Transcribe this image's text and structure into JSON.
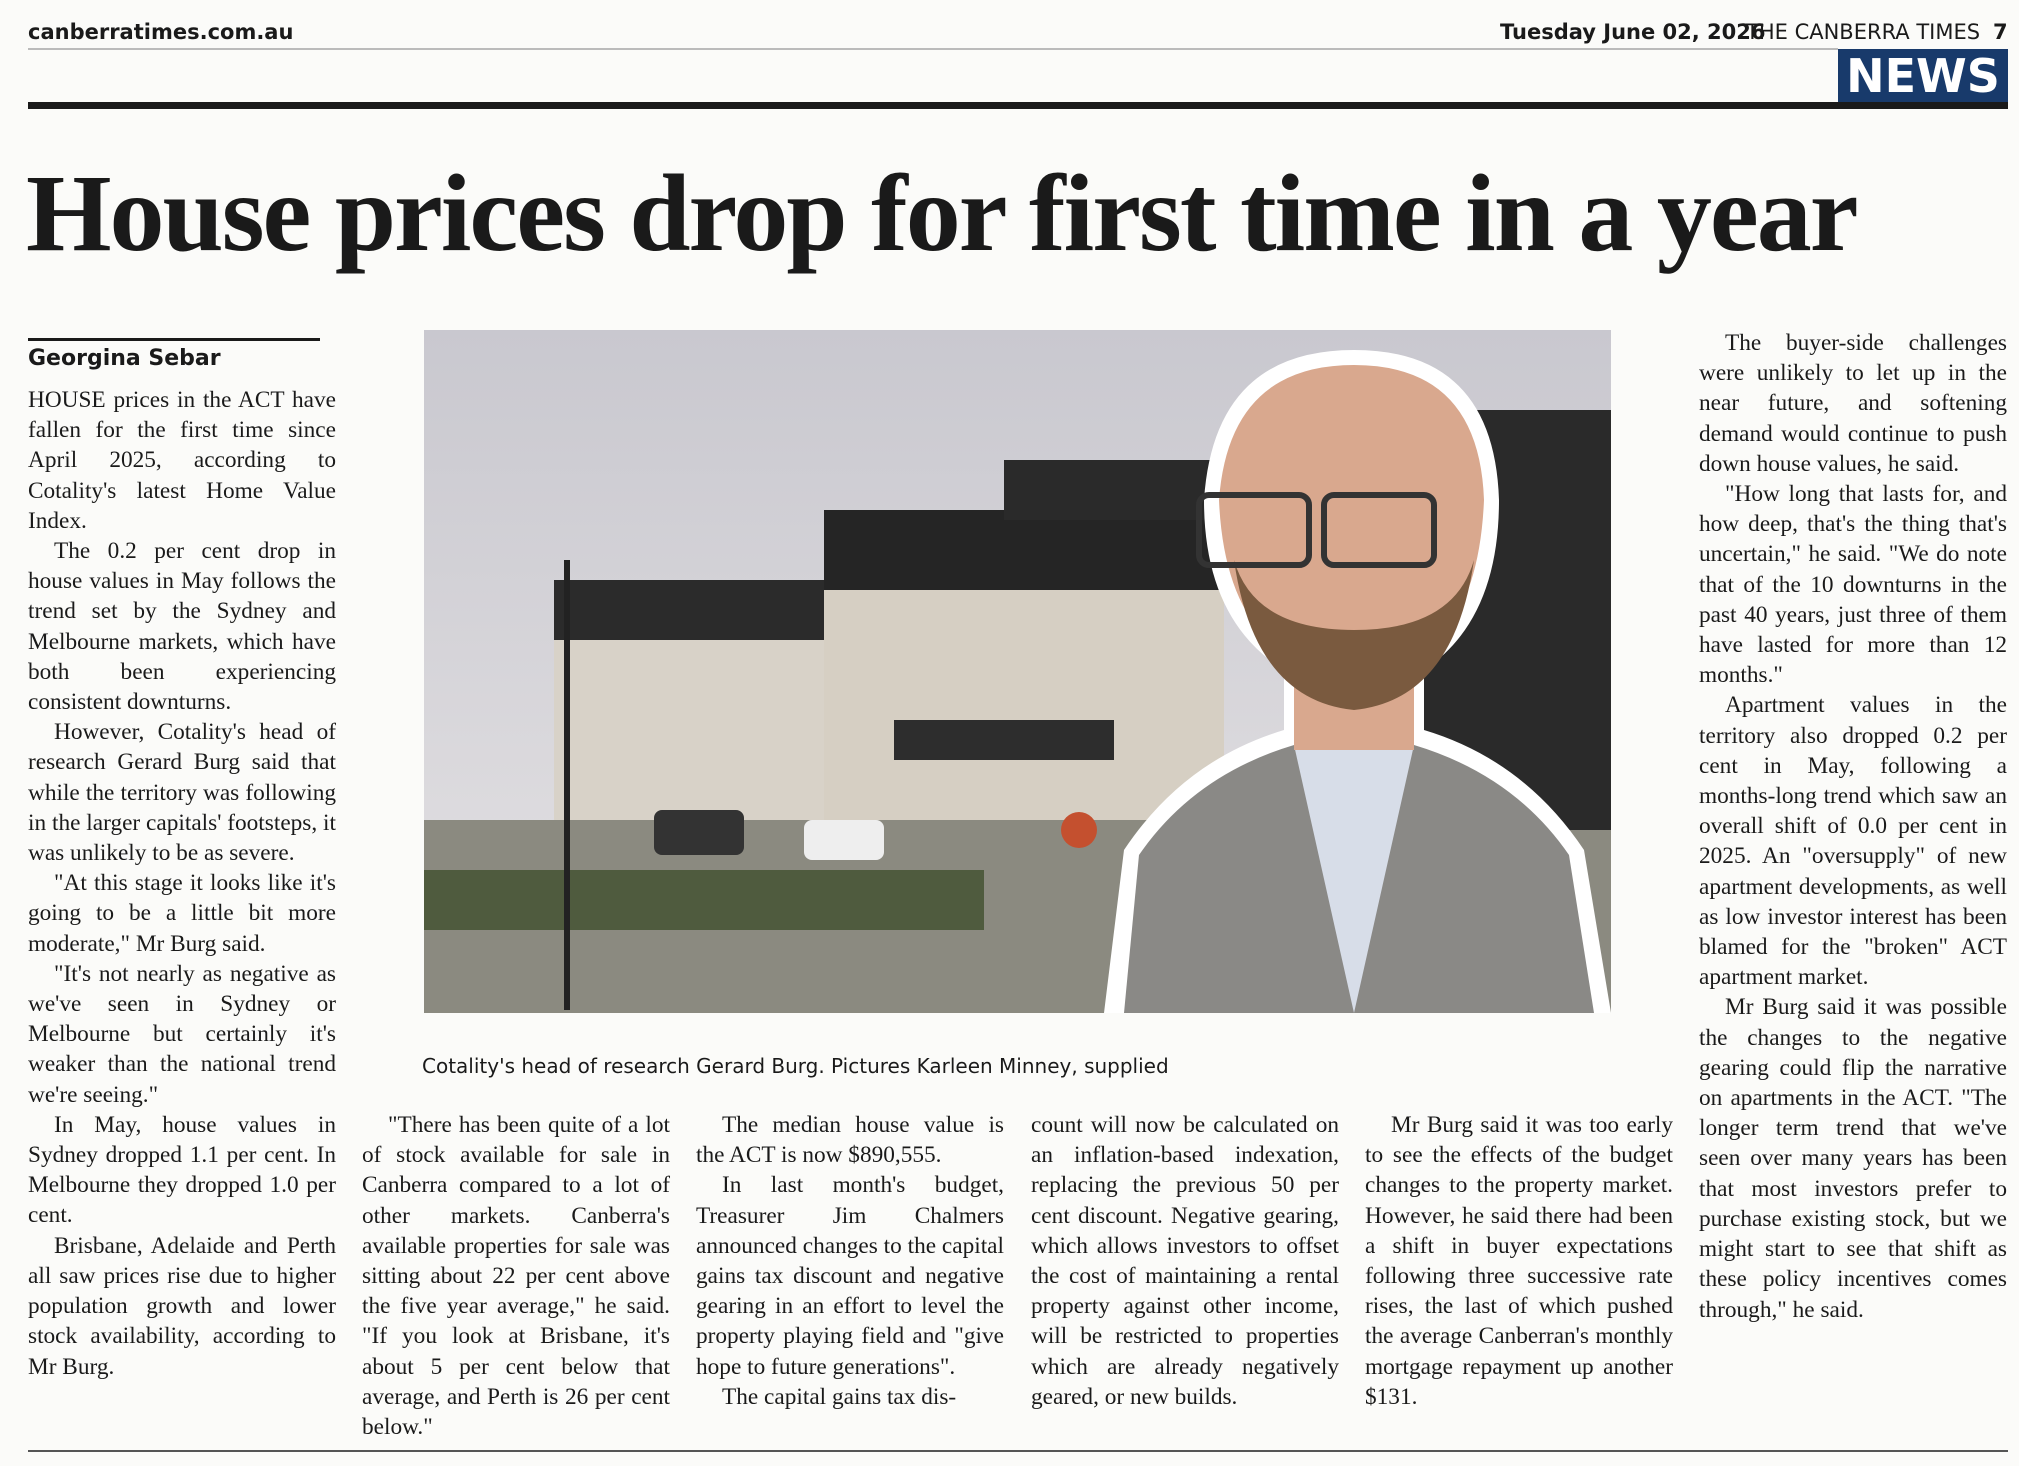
{
  "header": {
    "site": "canberratimes.com.au",
    "date": "Tuesday June 02, 2026",
    "paper": "THE CANBERRA TIMES",
    "page": "7",
    "section": "NEWS"
  },
  "headline": "House prices drop for first time in a year",
  "byline": "Georgina Sebar",
  "caption": "Cotality's head of research Gerard Burg. Pictures Karleen Minney, supplied",
  "columns": [
    [
      "HOUSE prices in the ACT have fallen for the first time since April 2025, according to Cotality's latest Home Value Index.",
      "The 0.2 per cent drop in house values in May follows the trend set by the Sydney and Melbourne markets, which have both been experiencing consistent downturns.",
      "However, Cotality's head of research Gerard Burg said that while the territory was following in the larger capitals' footsteps, it was unlikely to be as severe.",
      "\"At this stage it looks like it's going to be a little bit more moderate,\" Mr Burg said.",
      "\"It's not nearly as negative as we've seen in Sydney or Melbourne but certainly it's weaker than the national trend we're seeing.\"",
      "In May, house values in Sydney dropped 1.1 per cent. In Melbourne they dropped 1.0 per cent.",
      "Brisbane, Adelaide and Perth all saw prices rise due to higher population growth and lower stock availability, according to Mr Burg."
    ],
    [
      "\"There has been quite of a lot of stock available for sale in Canberra compared to a lot of other markets. Canberra's available properties for sale was sitting about 22 per cent above the five year average,\" he said. \"If you look at Brisbane, it's about 5 per cent below that average, and Perth is 26 per cent below.\""
    ],
    [
      "The median house value is the ACT is now $890,555.",
      "In last month's budget, Treasurer Jim Chalmers announced changes to the capital gains tax discount and negative gearing in an effort to level the property playing field and \"give hope to future generations\".",
      "The capital gains tax dis-"
    ],
    [
      "count will now be calculated on an inflation-based indexation, replacing the previous 50 per cent discount. Negative gearing, which allows investors to offset the cost of maintaining a rental property against other income, will be restricted to properties which are already negatively geared, or new builds."
    ],
    [
      "Mr Burg said it was too early to see the effects of the budget changes to the property market. However, he said there had been a shift in buyer expectations following three successive rate rises, the last of which pushed the average Canberran's monthly mortgage repayment up another $131."
    ],
    [
      "The buyer-side challenges were unlikely to let up in the near future, and softening demand would continue to push down house values, he said.",
      "\"How long that lasts for, and how deep, that's the thing that's uncertain,\" he said. \"We do note that of the 10 downturns in the past 40 years, just three of them have lasted for more than 12 months.\"",
      "Apartment values in the territory also dropped 0.2 per cent in May, following a months-long trend which saw an overall shift of 0.0 per cent in 2025. An \"oversupply\" of new apartment developments, as well as low investor interest has been blamed for the \"broken\" ACT apartment market.",
      "Mr Burg said it was possible the changes to the negative gearing could flip the narrative on apartments in the ACT. \"The longer term trend that we've seen over many years has been that most investors prefer to purchase existing stock, but we might start to see that shift as these policy incentives comes through,\" he said."
    ]
  ]
}
